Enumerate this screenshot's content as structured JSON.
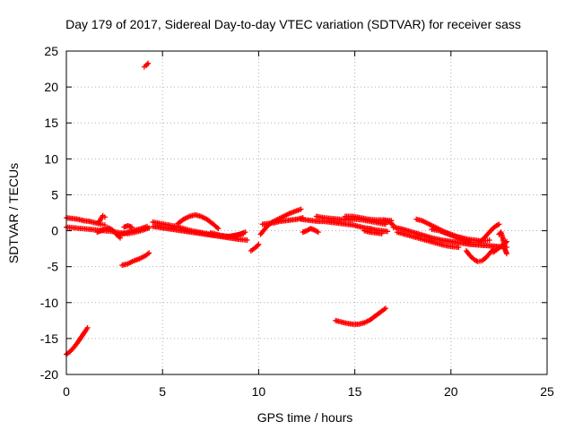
{
  "chart_data": {
    "type": "scatter",
    "title": "Day 179 of 2017, Sidereal Day-to-day VTEC variation (SDTVAR) for receiver sass",
    "xlabel": "GPS time / hours",
    "ylabel": "SDTVAR / TECUs",
    "xlim": [
      0,
      25
    ],
    "ylim": [
      -20,
      25
    ],
    "grid": true,
    "marker": "plus",
    "x_ticks": [
      0,
      5,
      10,
      15,
      20,
      25
    ],
    "y_ticks": [
      -20,
      -15,
      -10,
      -5,
      0,
      5,
      10,
      15,
      20,
      25
    ],
    "series": [
      {
        "name": "SDTVAR",
        "color": "#ff0000",
        "segments": [
          {
            "x": [
              0.0,
              0.2,
              0.4,
              0.6,
              0.8,
              1.0,
              1.1
            ],
            "y": [
              -17.2,
              -16.8,
              -16.2,
              -15.5,
              -14.7,
              -13.9,
              -13.5
            ]
          },
          {
            "x": [
              2.9,
              3.2,
              3.5,
              3.8,
              4.1,
              4.3
            ],
            "y": [
              -4.8,
              -4.6,
              -4.2,
              -3.9,
              -3.5,
              -3.1
            ]
          },
          {
            "x": [
              4.05,
              4.15,
              4.25
            ],
            "y": [
              22.8,
              23.0,
              23.3
            ]
          },
          {
            "x": [
              9.6,
              9.75,
              9.9,
              10.0
            ],
            "y": [
              -2.8,
              -2.5,
              -2.2,
              -1.9
            ]
          },
          {
            "x": [
              14.0,
              14.3,
              14.6,
              14.9,
              15.2,
              15.5,
              15.8,
              16.1,
              16.4,
              16.6
            ],
            "y": [
              -12.5,
              -12.7,
              -12.9,
              -13.0,
              -13.0,
              -12.8,
              -12.4,
              -11.8,
              -11.2,
              -10.8
            ]
          },
          {
            "x": [
              0.0,
              0.3,
              0.6,
              0.9,
              1.2,
              1.5,
              1.8,
              2.0
            ],
            "y": [
              1.8,
              1.7,
              1.6,
              1.4,
              1.3,
              1.1,
              0.9,
              0.8
            ]
          },
          {
            "x": [
              0.0,
              0.4,
              0.8,
              1.2,
              1.6,
              2.0,
              2.4,
              2.8,
              3.2,
              3.6,
              4.0,
              4.3
            ],
            "y": [
              0.5,
              0.4,
              0.3,
              0.2,
              0.1,
              0.0,
              -0.1,
              -0.3,
              -0.4,
              -0.2,
              0.1,
              0.4
            ]
          },
          {
            "x": [
              1.6,
              1.8,
              2.0,
              2.2,
              2.4,
              2.6,
              2.8
            ],
            "y": [
              -0.2,
              0.0,
              0.2,
              0.4,
              0.1,
              -0.5,
              -1.0
            ]
          },
          {
            "x": [
              1.7,
              1.8,
              1.9,
              2.0
            ],
            "y": [
              1.2,
              1.7,
              2.1,
              1.9
            ]
          },
          {
            "x": [
              2.7,
              3.0,
              3.3,
              3.6,
              3.9,
              4.2
            ],
            "y": [
              -0.6,
              -0.4,
              -0.1,
              0.1,
              0.3,
              0.6
            ]
          },
          {
            "x": [
              3.0,
              3.2,
              3.4
            ],
            "y": [
              0.5,
              0.7,
              0.5
            ]
          },
          {
            "x": [
              4.5,
              5.0,
              5.5,
              6.0,
              6.5,
              7.0,
              7.5,
              8.0,
              8.5,
              9.0,
              9.4
            ],
            "y": [
              0.6,
              0.4,
              0.2,
              0.0,
              -0.2,
              -0.4,
              -0.6,
              -0.8,
              -1.0,
              -1.2,
              -1.3
            ]
          },
          {
            "x": [
              4.5,
              4.9,
              5.3,
              5.7,
              6.1,
              6.5,
              6.9,
              7.3,
              7.7,
              8.1,
              8.5,
              8.9,
              9.2
            ],
            "y": [
              1.2,
              1.0,
              0.8,
              0.6,
              0.3,
              0.0,
              -0.2,
              -0.4,
              -0.6,
              -0.7,
              -0.8,
              -0.6,
              -0.4
            ]
          },
          {
            "x": [
              5.8,
              6.1,
              6.4,
              6.7,
              7.0,
              7.3,
              7.6,
              7.9
            ],
            "y": [
              1.0,
              1.6,
              2.0,
              2.2,
              2.0,
              1.6,
              1.0,
              0.3
            ]
          },
          {
            "x": [
              7.5,
              7.8,
              8.1,
              8.4,
              8.7,
              9.0,
              9.3
            ],
            "y": [
              -0.3,
              -0.5,
              -0.7,
              -0.8,
              -0.7,
              -0.5,
              -0.2
            ]
          },
          {
            "x": [
              10.1,
              10.4,
              10.7,
              11.0,
              11.3,
              11.6,
              11.9,
              12.2
            ],
            "y": [
              -0.5,
              0.5,
              1.2,
              1.6,
              2.0,
              2.4,
              2.7,
              3.0
            ]
          },
          {
            "x": [
              10.2,
              10.5,
              10.8,
              11.1,
              11.4,
              11.7,
              12.0,
              12.3
            ],
            "y": [
              0.9,
              1.0,
              1.1,
              1.3,
              1.4,
              1.5,
              1.6,
              1.8
            ]
          },
          {
            "x": [
              12.2,
              12.5,
              12.8,
              13.1,
              13.4,
              13.7,
              14.0,
              14.3,
              14.6,
              14.9,
              15.2,
              15.5,
              15.8,
              16.1,
              16.4,
              16.7
            ],
            "y": [
              1.6,
              1.5,
              1.4,
              1.3,
              1.3,
              1.2,
              1.1,
              1.0,
              0.9,
              0.8,
              0.6,
              0.4,
              0.3,
              0.1,
              0.0,
              -0.1
            ]
          },
          {
            "x": [
              12.3,
              12.5,
              12.7,
              12.9,
              13.1
            ],
            "y": [
              -0.2,
              0.0,
              0.3,
              0.1,
              -0.2
            ]
          },
          {
            "x": [
              13.0,
              13.4,
              13.8,
              14.2,
              14.6,
              15.0,
              15.4,
              15.8,
              16.2,
              16.6
            ],
            "y": [
              2.0,
              1.8,
              1.7,
              1.6,
              1.5,
              1.6,
              1.5,
              1.3,
              1.1,
              0.9
            ]
          },
          {
            "x": [
              14.5,
              14.9,
              15.3,
              15.7,
              16.1,
              16.5,
              16.9
            ],
            "y": [
              2.0,
              2.0,
              1.8,
              1.6,
              1.5,
              1.5,
              1.4
            ]
          },
          {
            "x": [
              15.5,
              15.8,
              16.1,
              16.4
            ],
            "y": [
              0.0,
              -0.2,
              -0.3,
              -0.4
            ]
          },
          {
            "x": [
              16.5,
              16.8,
              17.0
            ],
            "y": [
              1.5,
              1.2,
              0.8
            ]
          },
          {
            "x": [
              17.0,
              17.5,
              18.0,
              18.5,
              19.0,
              19.5,
              20.0,
              20.5,
              21.0,
              21.5,
              22.0,
              22.5,
              22.9
            ],
            "y": [
              0.5,
              0.2,
              -0.2,
              -0.6,
              -1.0,
              -1.3,
              -1.5,
              -1.7,
              -1.9,
              -2.0,
              -2.1,
              -2.2,
              -2.3
            ]
          },
          {
            "x": [
              17.2,
              17.6,
              18.0,
              18.4,
              18.8,
              19.2,
              19.6,
              20.0,
              20.4
            ],
            "y": [
              -0.2,
              -0.5,
              -0.8,
              -1.1,
              -1.4,
              -1.7,
              -2.0,
              -2.2,
              -2.3
            ]
          },
          {
            "x": [
              18.2,
              18.5,
              18.8,
              19.1,
              19.4,
              19.7,
              20.0,
              20.3,
              20.6,
              20.9,
              21.2,
              21.5,
              21.8,
              22.0
            ],
            "y": [
              1.6,
              1.4,
              1.0,
              0.6,
              0.2,
              -0.2,
              -0.5,
              -0.8,
              -1.0,
              -1.2,
              -1.3,
              -1.4,
              -1.4,
              -1.3
            ]
          },
          {
            "x": [
              19.0,
              19.4,
              19.8,
              20.2,
              20.6,
              21.0
            ],
            "y": [
              0.2,
              0.0,
              -0.4,
              -0.8,
              -1.2,
              -1.6
            ]
          },
          {
            "x": [
              20.8,
              21.0,
              21.2,
              21.4,
              21.6,
              21.8,
              22.0,
              22.2
            ],
            "y": [
              -2.8,
              -3.5,
              -4.0,
              -4.3,
              -4.2,
              -3.8,
              -3.2,
              -2.6
            ]
          },
          {
            "x": [
              21.5,
              21.7,
              21.9,
              22.1,
              22.3,
              22.5
            ],
            "y": [
              -1.6,
              -1.1,
              -0.5,
              0.1,
              0.6,
              0.9
            ]
          },
          {
            "x": [
              22.2,
              22.4,
              22.6,
              22.8,
              22.9
            ],
            "y": [
              -3.0,
              -2.6,
              -2.2,
              -1.8,
              -1.5
            ]
          },
          {
            "x": [
              22.5,
              22.6,
              22.7,
              22.8,
              22.9
            ],
            "y": [
              -0.5,
              -0.2,
              -1.0,
              -2.5,
              -3.2
            ]
          }
        ]
      }
    ]
  }
}
